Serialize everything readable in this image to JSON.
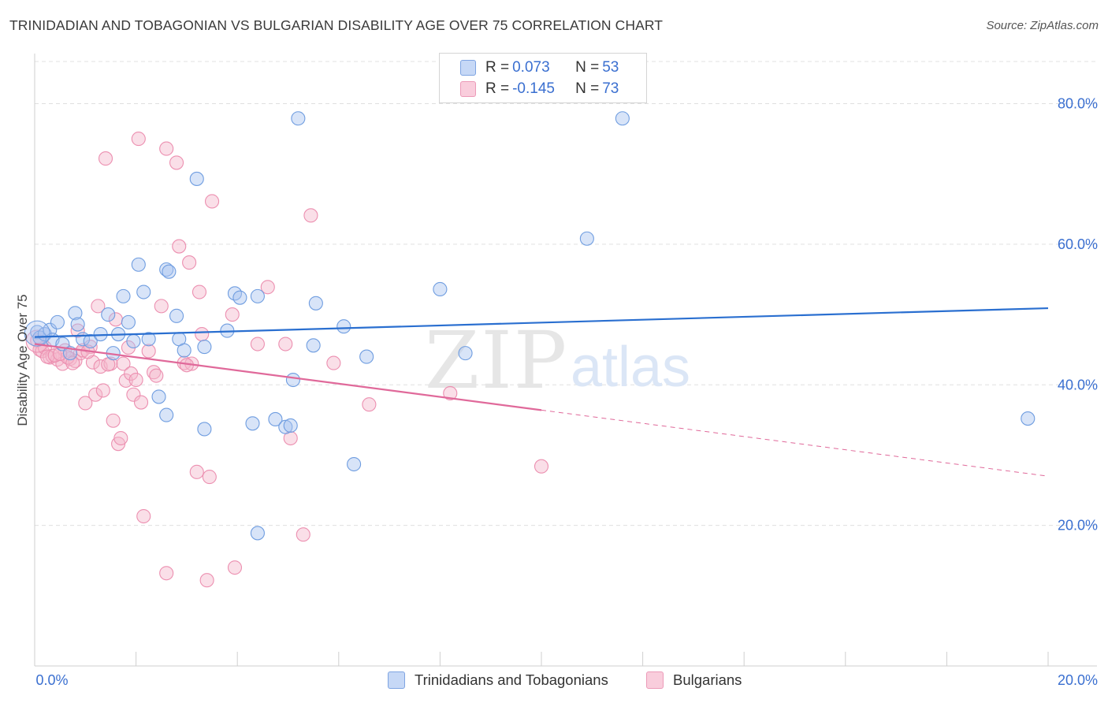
{
  "header": {
    "title": "TRINIDADIAN AND TOBAGONIAN VS BULGARIAN DISABILITY AGE OVER 75 CORRELATION CHART",
    "source": "Source: ZipAtlas.com"
  },
  "watermark": {
    "zip": "ZIP",
    "atlas": "atlas"
  },
  "colors": {
    "blue_fill": "#a8c4f0",
    "blue_stroke": "#6f9de0",
    "blue_line": "#2a6fd0",
    "pink_fill": "#f5b8cc",
    "pink_stroke": "#ec8fb0",
    "pink_line": "#e0699a",
    "grid": "#e0e0e0",
    "tick_label": "#3a6fd0"
  },
  "legend": {
    "rows": [
      {
        "r_label": "R = ",
        "r_value": "0.073",
        "n_label": "N = ",
        "n_value": "53"
      },
      {
        "r_label": "R = ",
        "r_value": "-0.145",
        "n_label": "N = ",
        "n_value": "73"
      }
    ]
  },
  "bottom_legend": [
    "Trinidadians and Tobagonians",
    "Bulgarians"
  ],
  "chart_data": {
    "type": "scatter",
    "title": "TRINIDADIAN AND TOBAGONIAN VS BULGARIAN DISABILITY AGE OVER 75 CORRELATION CHART",
    "xlabel": "",
    "ylabel": "Disability Age Over 75",
    "xlim": [
      0,
      20
    ],
    "ylim": [
      0,
      86
    ],
    "x_tick_labels": [
      "0.0%",
      "20.0%"
    ],
    "y_ticks": [
      20,
      40,
      60,
      80
    ],
    "y_tick_labels": [
      "20.0%",
      "40.0%",
      "60.0%",
      "80.0%"
    ],
    "grid": true,
    "legend_position": "top-center",
    "series": [
      {
        "name": "Trinidadians and Tobagonians",
        "R": 0.073,
        "N": 53,
        "trend": {
          "x": [
            0,
            20
          ],
          "y": [
            46.8,
            50.9
          ]
        },
        "points": [
          [
            0.05,
            47.5
          ],
          [
            0.1,
            46.7
          ],
          [
            0.2,
            47.2
          ],
          [
            0.3,
            47.8
          ],
          [
            0.35,
            46.4
          ],
          [
            0.45,
            48.9
          ],
          [
            0.55,
            45.8
          ],
          [
            0.7,
            44.5
          ],
          [
            0.8,
            50.2
          ],
          [
            0.85,
            48.6
          ],
          [
            0.95,
            46.5
          ],
          [
            1.1,
            46.2
          ],
          [
            1.3,
            47.2
          ],
          [
            1.45,
            50.0
          ],
          [
            1.55,
            44.5
          ],
          [
            1.65,
            47.2
          ],
          [
            1.75,
            52.6
          ],
          [
            1.85,
            48.9
          ],
          [
            1.95,
            46.2
          ],
          [
            2.05,
            57.1
          ],
          [
            2.15,
            53.2
          ],
          [
            2.25,
            46.5
          ],
          [
            2.45,
            38.3
          ],
          [
            2.6,
            56.4
          ],
          [
            2.65,
            56.1
          ],
          [
            2.6,
            35.7
          ],
          [
            2.8,
            49.8
          ],
          [
            2.85,
            46.5
          ],
          [
            2.95,
            44.9
          ],
          [
            3.2,
            69.3
          ],
          [
            3.35,
            45.4
          ],
          [
            3.8,
            47.7
          ],
          [
            3.95,
            53.0
          ],
          [
            4.05,
            52.4
          ],
          [
            4.3,
            34.5
          ],
          [
            4.4,
            18.9
          ],
          [
            4.4,
            52.6
          ],
          [
            4.75,
            35.1
          ],
          [
            4.95,
            34.0
          ],
          [
            5.05,
            34.2
          ],
          [
            5.1,
            40.7
          ],
          [
            5.2,
            77.9
          ],
          [
            5.55,
            51.6
          ],
          [
            5.5,
            45.6
          ],
          [
            6.1,
            48.3
          ],
          [
            6.3,
            28.7
          ],
          [
            6.55,
            44.0
          ],
          [
            8.0,
            53.6
          ],
          [
            8.5,
            44.5
          ],
          [
            10.9,
            60.8
          ],
          [
            11.6,
            77.9
          ],
          [
            19.6,
            35.2
          ],
          [
            3.35,
            33.7
          ]
        ]
      },
      {
        "name": "Bulgarians",
        "R": -0.145,
        "N": 73,
        "trend": {
          "x": [
            0,
            10
          ],
          "y": [
            45.8,
            36.4
          ]
        },
        "trend_extension": {
          "x": [
            10,
            20
          ],
          "y": [
            36.4,
            27.0
          ]
        },
        "points": [
          [
            0.05,
            46.3
          ],
          [
            0.1,
            45.0
          ],
          [
            0.15,
            44.8
          ],
          [
            0.2,
            45.3
          ],
          [
            0.3,
            43.9
          ],
          [
            0.35,
            44.1
          ],
          [
            0.45,
            43.6
          ],
          [
            0.55,
            43.0
          ],
          [
            0.6,
            44.9
          ],
          [
            0.7,
            43.7
          ],
          [
            0.8,
            43.4
          ],
          [
            0.85,
            47.7
          ],
          [
            0.9,
            44.5
          ],
          [
            0.95,
            44.9
          ],
          [
            1.0,
            37.4
          ],
          [
            1.1,
            45.4
          ],
          [
            1.15,
            43.2
          ],
          [
            1.2,
            38.6
          ],
          [
            1.25,
            51.2
          ],
          [
            1.3,
            42.6
          ],
          [
            1.35,
            39.2
          ],
          [
            1.4,
            72.2
          ],
          [
            1.5,
            43.0
          ],
          [
            1.55,
            34.9
          ],
          [
            1.6,
            49.3
          ],
          [
            1.65,
            31.6
          ],
          [
            1.7,
            32.4
          ],
          [
            1.75,
            43.0
          ],
          [
            1.8,
            40.6
          ],
          [
            1.85,
            45.3
          ],
          [
            1.9,
            41.6
          ],
          [
            1.95,
            38.6
          ],
          [
            2.0,
            40.7
          ],
          [
            2.05,
            75.0
          ],
          [
            2.1,
            37.5
          ],
          [
            2.15,
            21.3
          ],
          [
            2.25,
            44.8
          ],
          [
            2.35,
            41.8
          ],
          [
            2.4,
            41.3
          ],
          [
            2.5,
            51.2
          ],
          [
            2.6,
            13.2
          ],
          [
            2.6,
            73.6
          ],
          [
            2.8,
            71.6
          ],
          [
            2.85,
            59.7
          ],
          [
            2.95,
            43.1
          ],
          [
            3.05,
            57.4
          ],
          [
            3.1,
            43.0
          ],
          [
            3.2,
            27.6
          ],
          [
            3.25,
            53.2
          ],
          [
            3.3,
            47.2
          ],
          [
            3.4,
            12.2
          ],
          [
            3.45,
            26.9
          ],
          [
            3.5,
            66.1
          ],
          [
            3.9,
            50.0
          ],
          [
            3.95,
            14.0
          ],
          [
            4.4,
            45.8
          ],
          [
            4.6,
            53.9
          ],
          [
            4.95,
            45.8
          ],
          [
            5.05,
            32.4
          ],
          [
            5.3,
            18.7
          ],
          [
            5.45,
            64.1
          ],
          [
            5.9,
            43.1
          ],
          [
            6.6,
            37.2
          ],
          [
            8.2,
            38.8
          ],
          [
            10.0,
            28.4
          ],
          [
            0.25,
            44.0
          ],
          [
            0.4,
            44.2
          ],
          [
            0.65,
            43.9
          ],
          [
            0.75,
            43.1
          ],
          [
            1.05,
            44.7
          ],
          [
            1.45,
            42.9
          ],
          [
            3.0,
            42.8
          ],
          [
            0.5,
            44.4
          ]
        ]
      }
    ]
  }
}
